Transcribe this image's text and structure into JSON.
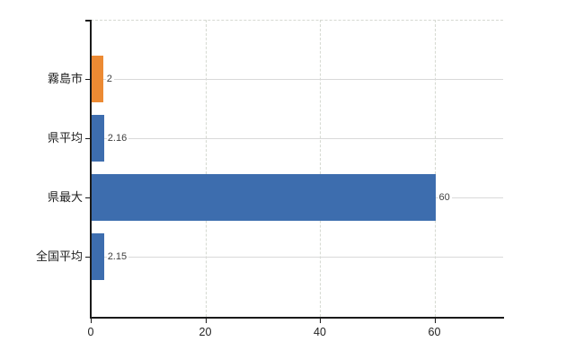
{
  "chart_data": {
    "type": "bar",
    "orientation": "horizontal",
    "title": "",
    "xlabel": "",
    "ylabel": "",
    "categories": [
      "霧島市",
      "県平均",
      "県最大",
      "全国平均"
    ],
    "values": [
      2,
      2.16,
      60,
      2.15
    ],
    "value_labels": [
      "2",
      "2.16",
      "60",
      "2.15"
    ],
    "bar_colors": [
      "#ec8a33",
      "#3d6dae",
      "#3d6dae",
      "#3d6dae"
    ],
    "x_ticks": [
      0,
      20,
      40,
      60
    ],
    "x_tick_labels": [
      "0",
      "20",
      "40",
      "60"
    ],
    "xlim": [
      0,
      72
    ],
    "grid": {
      "horizontal_category_lines": true,
      "vertical_tick_lines_dashed": true,
      "top_border_dashed": true
    },
    "legend": "none"
  },
  "colors": {
    "bar_blue": "#3d6dae",
    "bar_orange": "#ec8a33",
    "h_gridline": "#d9d9d9",
    "v_gridline_dashed": "#d5d9d1",
    "axis": "#1a1a1a",
    "value_label_text": "#404040",
    "tick_label_text": "#202020",
    "background": "#ffffff"
  }
}
